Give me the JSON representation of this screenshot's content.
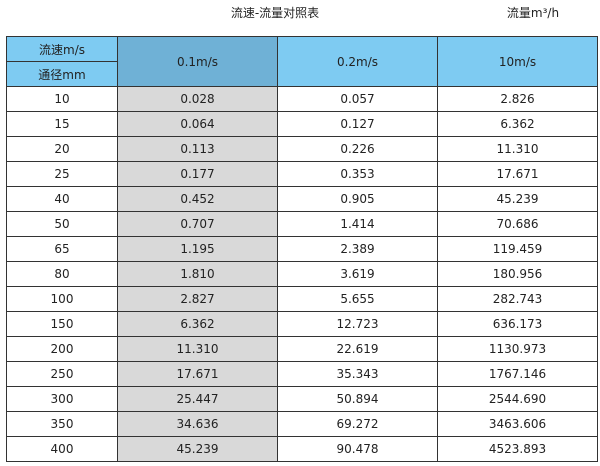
{
  "title": "流速-流量对照表",
  "unit_label": "流量m³/h",
  "header": {
    "velocity_label": "流速m/s",
    "diameter_label": "通径mm",
    "columns": [
      "0.1m/s",
      "0.2m/s",
      "10m/s"
    ]
  },
  "colors": {
    "header": "#7ecbf2",
    "header_highlight": "#6fb1d6",
    "highlight_column": "#d9d9d9"
  },
  "rows": [
    {
      "dn": "10",
      "v": [
        "0.028",
        "0.057",
        "2.826"
      ]
    },
    {
      "dn": "15",
      "v": [
        "0.064",
        "0.127",
        "6.362"
      ]
    },
    {
      "dn": "20",
      "v": [
        "0.113",
        "0.226",
        "11.310"
      ]
    },
    {
      "dn": "25",
      "v": [
        "0.177",
        "0.353",
        "17.671"
      ]
    },
    {
      "dn": "40",
      "v": [
        "0.452",
        "0.905",
        "45.239"
      ]
    },
    {
      "dn": "50",
      "v": [
        "0.707",
        "1.414",
        "70.686"
      ]
    },
    {
      "dn": "65",
      "v": [
        "1.195",
        "2.389",
        "119.459"
      ]
    },
    {
      "dn": "80",
      "v": [
        "1.810",
        "3.619",
        "180.956"
      ]
    },
    {
      "dn": "100",
      "v": [
        "2.827",
        "5.655",
        "282.743"
      ]
    },
    {
      "dn": "150",
      "v": [
        "6.362",
        "12.723",
        "636.173"
      ]
    },
    {
      "dn": "200",
      "v": [
        "11.310",
        "22.619",
        "1130.973"
      ]
    },
    {
      "dn": "250",
      "v": [
        "17.671",
        "35.343",
        "1767.146"
      ]
    },
    {
      "dn": "300",
      "v": [
        "25.447",
        "50.894",
        "2544.690"
      ]
    },
    {
      "dn": "350",
      "v": [
        "34.636",
        "69.272",
        "3463.606"
      ]
    },
    {
      "dn": "400",
      "v": [
        "45.239",
        "90.478",
        "4523.893"
      ]
    }
  ]
}
